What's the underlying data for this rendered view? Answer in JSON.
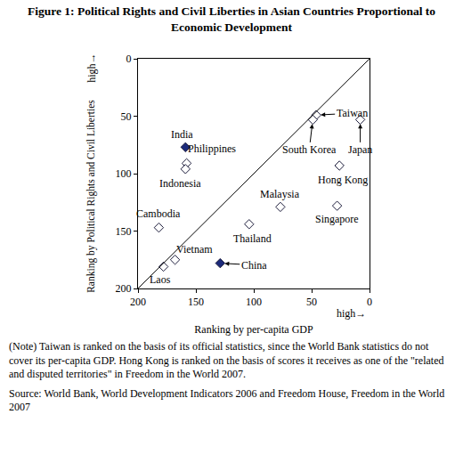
{
  "chart_data": {
    "type": "scatter",
    "title": "Figure 1: Political Rights and Civil Liberties in Asian Countries Proportional to Economic Development",
    "xlabel": "Ranking by per-capita GDP",
    "ylabel": "Ranking by Political Rights and Civil Liberties",
    "annotations": [
      {
        "text": "high→",
        "axis": "x"
      },
      {
        "text": "high→",
        "axis": "y"
      }
    ],
    "point_labels": [
      "Taiwan",
      "South Korea",
      "Japan",
      "Hong Kong",
      "Singapore",
      "Malaysia",
      "Thailand",
      "India",
      "Philippines",
      "Indonesia",
      "Cambodia",
      "Vietnam",
      "Laos",
      "China"
    ],
    "x": [
      46,
      49,
      8,
      26,
      28,
      77,
      104,
      159,
      158,
      159,
      182,
      168,
      178,
      129
    ],
    "values": [
      49,
      53,
      53,
      93,
      128,
      129,
      144,
      77,
      91,
      96,
      147,
      175,
      181,
      178
    ],
    "colors": [
      "#ffffff",
      "#ffffff",
      "#ffffff",
      "#ffffff",
      "#ffffff",
      "#ffffff",
      "#ffffff",
      "#1c2a7a",
      "#ffffff",
      "#ffffff",
      "#ffffff",
      "#ffffff",
      "#ffffff",
      "#1c2a7a"
    ],
    "marker": "diamond",
    "xlim": [
      200,
      0
    ],
    "ylim": [
      200,
      0
    ],
    "xticks": [
      200,
      150,
      100,
      50,
      0
    ],
    "yticks": [
      0,
      50,
      100,
      150,
      200
    ],
    "grid": false,
    "note": "(Note) Taiwan is ranked on the basis of its official statistics, since the World Bank statistics do not cover its per-capita GDP. Hong Kong is ranked on the basis of scores it receives as one of the \"related and disputed territories\" in Freedom in the World 2007.",
    "source": "Source: World Bank, World Development Indicators 2006 and Freedom House, Freedom in the World 2007"
  }
}
